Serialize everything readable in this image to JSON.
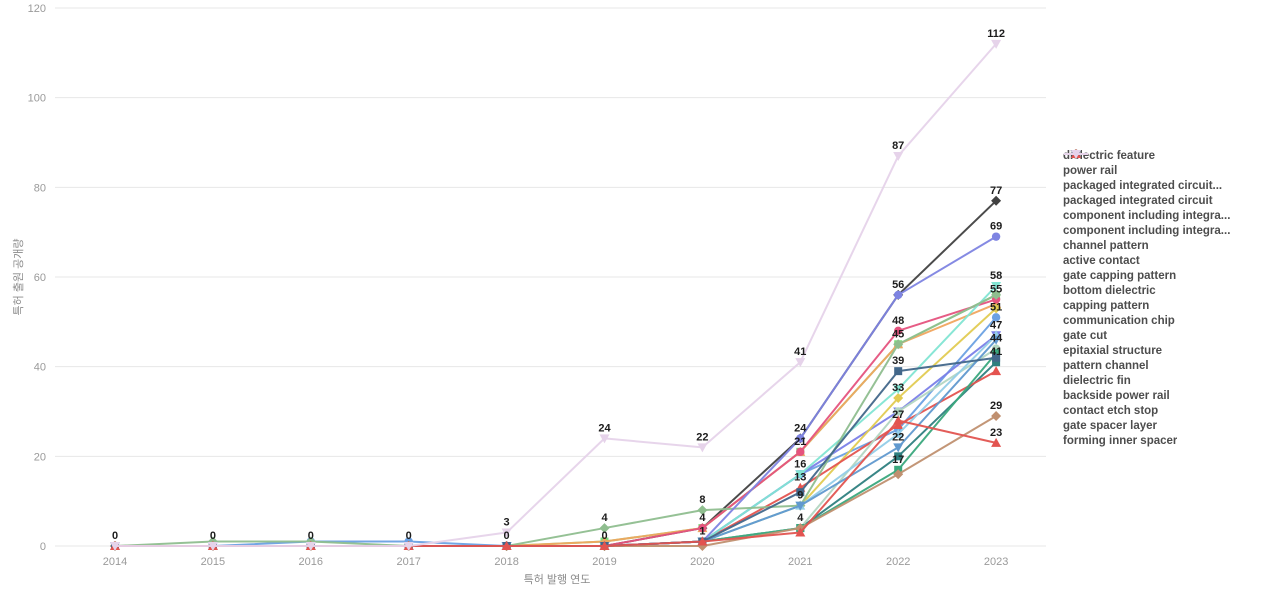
{
  "chart_data": {
    "type": "line",
    "title": "",
    "xlabel": "특허 발행 연도",
    "ylabel": "특허 출원 공개량",
    "x": [
      2014,
      2015,
      2016,
      2017,
      2018,
      2019,
      2020,
      2021,
      2022,
      2023
    ],
    "y_ticks": [
      0,
      20,
      40,
      60,
      80,
      100,
      120
    ],
    "ylim": [
      0,
      120
    ],
    "grid": "horizontal",
    "legend_position": "right",
    "marker_cycle": [
      "circle",
      "diamond",
      "square",
      "triangle-up",
      "triangle-down"
    ],
    "series": [
      {
        "name": "dielectric feature",
        "color": "#6BA1E3",
        "marker": "circle",
        "values": [
          0,
          0,
          1,
          1,
          0,
          0,
          1,
          16,
          26,
          51
        ]
      },
      {
        "name": "power rail",
        "color": "#414141",
        "marker": "diamond",
        "values": [
          0,
          0,
          0,
          0,
          0,
          0,
          4,
          24,
          56,
          77
        ]
      },
      {
        "name": "packaged integrated circuit...",
        "color": "#7CDC7C",
        "marker": "square",
        "values": [
          0,
          0,
          0,
          0,
          0,
          1,
          4,
          21,
          45,
          56
        ]
      },
      {
        "name": "packaged integrated circuit",
        "color": "#F0A55F",
        "marker": "triangle-up",
        "values": [
          0,
          0,
          0,
          0,
          0,
          1,
          4,
          21,
          45,
          54
        ]
      },
      {
        "name": "component including integra...",
        "color": "#7B80E8",
        "marker": "triangle-down",
        "values": [
          0,
          0,
          0,
          0,
          0,
          0,
          1,
          16,
          30,
          47
        ]
      },
      {
        "name": "component including integra...",
        "color": "#E5537E",
        "marker": "circle",
        "values": [
          0,
          0,
          0,
          0,
          0,
          0,
          4,
          21,
          48,
          55
        ]
      },
      {
        "name": "channel pattern",
        "color": "#E2CB52",
        "marker": "diamond",
        "values": [
          0,
          0,
          0,
          0,
          0,
          0,
          1,
          9,
          33,
          53
        ]
      },
      {
        "name": "active contact",
        "color": "#2E7F7F",
        "marker": "square",
        "values": [
          0,
          0,
          0,
          0,
          0,
          0,
          1,
          4,
          20,
          41
        ]
      },
      {
        "name": "gate capping pattern",
        "color": "#E4534F",
        "marker": "triangle-up",
        "values": [
          0,
          0,
          0,
          0,
          0,
          0,
          1,
          13,
          27,
          39
        ]
      },
      {
        "name": "bottom dielectric",
        "color": "#82E5D3",
        "marker": "triangle-down",
        "values": [
          0,
          0,
          0,
          0,
          0,
          0,
          1,
          16,
          35,
          58
        ]
      },
      {
        "name": "capping pattern",
        "color": "#B2D6C2",
        "marker": "circle",
        "values": [
          0,
          0,
          0,
          0,
          0,
          0,
          1,
          4,
          30,
          44
        ]
      },
      {
        "name": "communication chip",
        "color": "#8FBE8F",
        "marker": "diamond",
        "values": [
          0,
          1,
          1,
          0,
          0,
          4,
          8,
          9,
          45,
          56
        ]
      },
      {
        "name": "gate cut",
        "color": "#3AA87D",
        "marker": "square",
        "values": [
          0,
          0,
          0,
          0,
          0,
          0,
          1,
          4,
          17,
          43
        ]
      },
      {
        "name": "epitaxial structure",
        "color": "#93CDE8",
        "marker": "triangle-up",
        "values": [
          0,
          0,
          0,
          0,
          0,
          0,
          1,
          9,
          25,
          47
        ]
      },
      {
        "name": "pattern channel",
        "color": "#6099CF",
        "marker": "triangle-down",
        "values": [
          0,
          0,
          0,
          0,
          0,
          0,
          1,
          9,
          22,
          46
        ]
      },
      {
        "name": "dielectric fin",
        "color": "#7E84E2",
        "marker": "circle",
        "values": [
          0,
          0,
          0,
          0,
          0,
          0,
          1,
          24,
          56,
          69
        ]
      },
      {
        "name": "backside power rail",
        "color": "#C09070",
        "marker": "diamond",
        "values": [
          0,
          0,
          0,
          0,
          0,
          0,
          0,
          4,
          16,
          29
        ]
      },
      {
        "name": "contact etch stop",
        "color": "#42678A",
        "marker": "square",
        "values": [
          0,
          0,
          0,
          0,
          0,
          0,
          1,
          12,
          39,
          42
        ]
      },
      {
        "name": "gate spacer layer",
        "color": "#E25450",
        "marker": "triangle-up",
        "values": [
          0,
          0,
          0,
          0,
          0,
          0,
          1,
          3,
          28,
          23
        ]
      },
      {
        "name": "forming inner spacer",
        "color": "#E6D3EA",
        "marker": "triangle-down",
        "values": [
          0,
          0,
          0,
          0,
          3,
          24,
          22,
          41,
          87,
          112
        ]
      }
    ],
    "visible_point_labels": [
      {
        "year": 2014,
        "values": [
          0
        ]
      },
      {
        "year": 2015,
        "values": [
          0
        ]
      },
      {
        "year": 2016,
        "values": [
          0
        ]
      },
      {
        "year": 2017,
        "values": [
          0
        ]
      },
      {
        "year": 2018,
        "values": [
          3,
          0
        ]
      },
      {
        "year": 2019,
        "values": [
          24,
          4,
          0
        ]
      },
      {
        "year": 2020,
        "values": [
          22,
          8,
          4,
          1
        ]
      },
      {
        "year": 2021,
        "values": [
          41,
          24,
          21,
          16,
          13,
          9,
          4
        ]
      },
      {
        "year": 2022,
        "values": [
          87,
          56,
          48,
          45,
          39,
          33,
          27,
          22,
          17
        ]
      },
      {
        "year": 2023,
        "values": [
          112,
          77,
          69,
          58,
          55,
          51,
          47,
          44,
          41,
          29,
          23
        ]
      }
    ],
    "colors": {
      "grid": "#e7e7e7",
      "tick_label": "#9a9a9a",
      "axis_title": "#8a8a8a",
      "point_label": "#1c1c1c",
      "legend_text": "#4d4d4d",
      "background": "#ffffff"
    }
  }
}
